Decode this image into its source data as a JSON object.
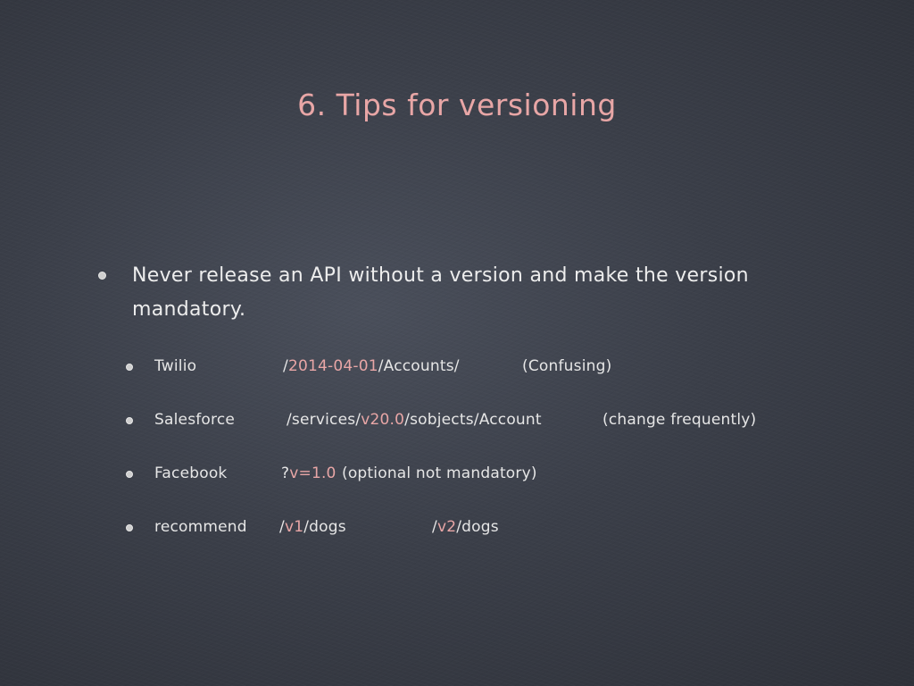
{
  "slide": {
    "title": "6. Tips for versioning",
    "main_bullet": "Never release an API without a version and make the version mandatory.",
    "items": [
      {
        "name": "Twilio",
        "path_parts": [
          "/",
          "2014-04-01",
          "/Accounts/"
        ],
        "note": "(Confusing)"
      },
      {
        "name": "Salesforce",
        "path_parts": [
          "/services/",
          "v20.0",
          "/sobjects/Account"
        ],
        "note": "(change frequently)"
      },
      {
        "name": "Facebook",
        "path_parts": [
          "?",
          "v=1.0",
          ""
        ],
        "note": "(optional not mandatory)"
      },
      {
        "name": "recommend",
        "path_parts": [
          "/",
          "v1",
          "/dogs"
        ],
        "path2_parts": [
          "/",
          "v2",
          "/dogs"
        ]
      }
    ]
  },
  "colors": {
    "background": "#3b3f49",
    "accent": "#e8a6a6",
    "text": "#e9e9e9"
  }
}
